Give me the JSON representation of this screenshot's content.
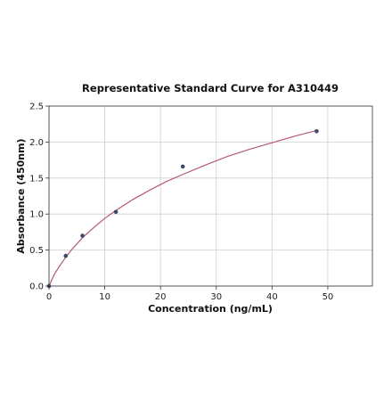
{
  "chart_data": {
    "type": "scatter",
    "title": "Representative Standard Curve for A310449",
    "xlabel": "Concentration (ng/mL)",
    "ylabel": "Absorbance (450nm)",
    "xlim": [
      0,
      58
    ],
    "ylim": [
      0,
      2.5
    ],
    "xticks": [
      0,
      10,
      20,
      30,
      40,
      50
    ],
    "yticks": [
      0.0,
      0.5,
      1.0,
      1.5,
      2.0,
      2.5
    ],
    "xtick_labels": [
      "0",
      "10",
      "20",
      "30",
      "40",
      "50"
    ],
    "ytick_labels": [
      "0.0",
      "0.5",
      "1.0",
      "1.5",
      "2.0",
      "2.5"
    ],
    "grid": true,
    "points": [
      {
        "x": 0,
        "y": 0.0
      },
      {
        "x": 3,
        "y": 0.42
      },
      {
        "x": 6,
        "y": 0.7
      },
      {
        "x": 12,
        "y": 1.03
      },
      {
        "x": 24,
        "y": 1.66
      },
      {
        "x": 48,
        "y": 2.15
      }
    ],
    "fit_curve": {
      "type": "fit",
      "x": [
        0,
        1,
        2,
        3,
        4,
        6,
        8,
        10,
        12,
        15,
        18,
        21,
        24,
        28,
        32,
        36,
        40,
        44,
        48
      ],
      "y": [
        0.0,
        0.17,
        0.29,
        0.4,
        0.5,
        0.67,
        0.81,
        0.94,
        1.05,
        1.2,
        1.33,
        1.45,
        1.55,
        1.68,
        1.8,
        1.9,
        1.99,
        2.08,
        2.16
      ]
    },
    "colors": {
      "points": "#3b4a6b",
      "curve": "#b5596e"
    }
  }
}
